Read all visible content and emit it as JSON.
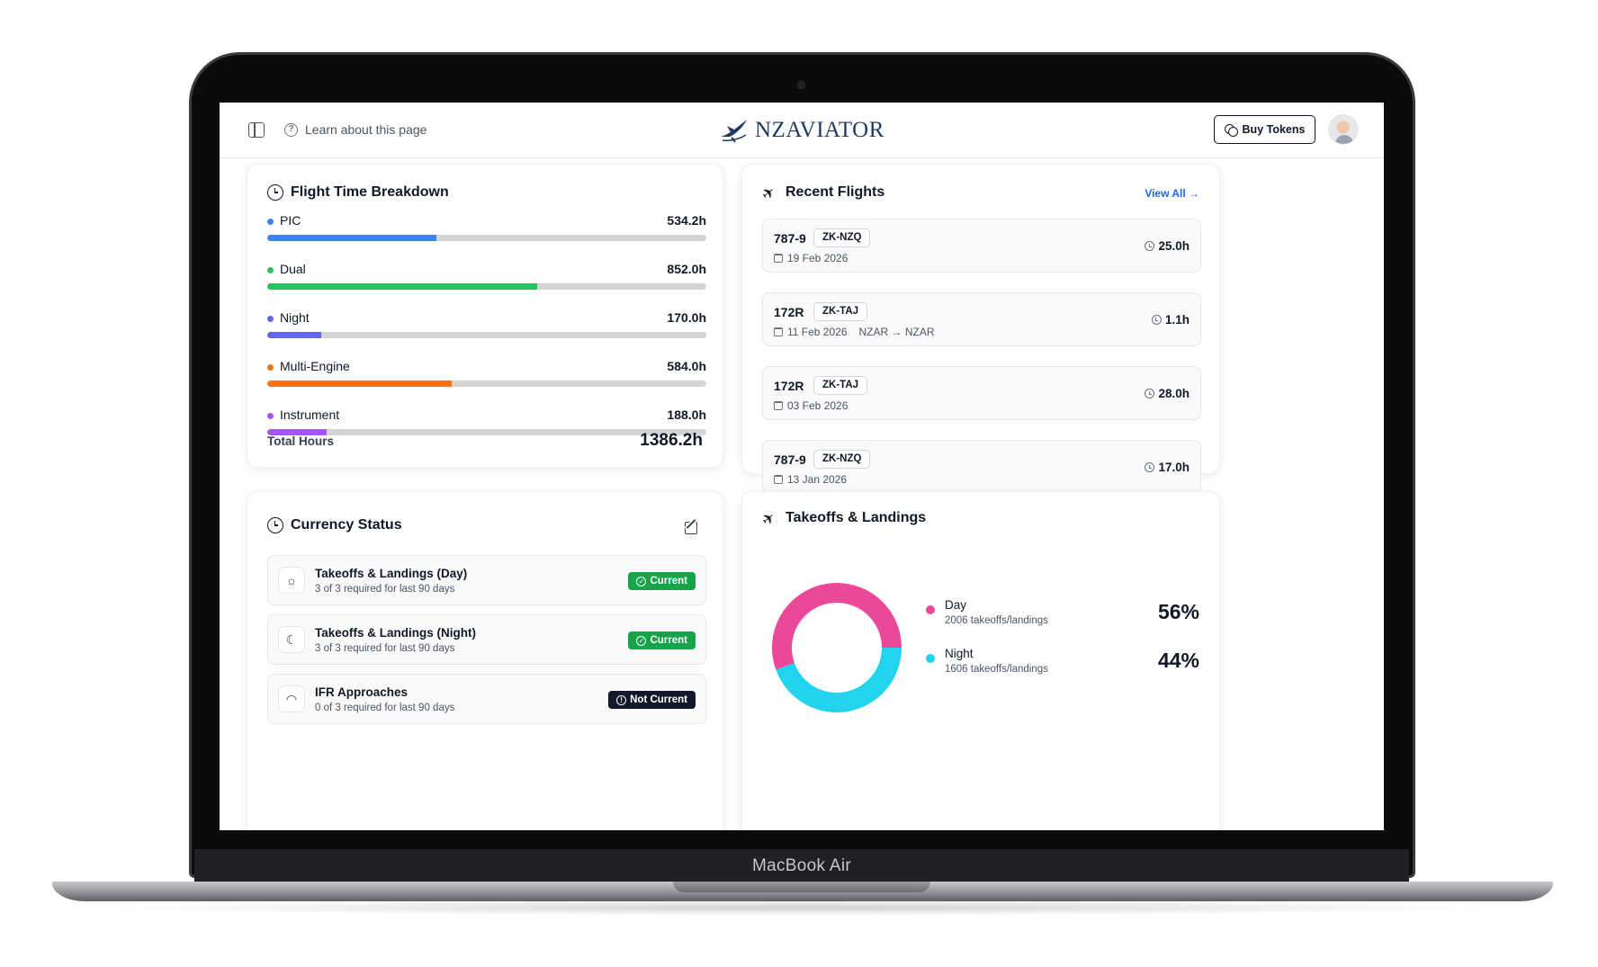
{
  "device": {
    "label": "MacBook Air"
  },
  "header": {
    "help_link": "Learn about this page",
    "logo_text": "NZAVIATOR",
    "buy_tokens": "Buy Tokens"
  },
  "flight_time": {
    "title": "Flight Time Breakdown",
    "rows": [
      {
        "label": "PIC",
        "value": "534.2h",
        "fraction": 0.385,
        "color": "#3b82f6"
      },
      {
        "label": "Dual",
        "value": "852.0h",
        "fraction": 0.615,
        "color": "#22c55e"
      },
      {
        "label": "Night",
        "value": "170.0h",
        "fraction": 0.123,
        "color": "#6366f1"
      },
      {
        "label": "Multi-Engine",
        "value": "584.0h",
        "fraction": 0.421,
        "color": "#f97316"
      },
      {
        "label": "Instrument",
        "value": "188.0h",
        "fraction": 0.136,
        "color": "#a855f7"
      }
    ],
    "total_label": "Total Hours",
    "total_value": "1386.2h"
  },
  "recent_flights": {
    "title": "Recent Flights",
    "view_all": "View All →",
    "items": [
      {
        "type": "787-9",
        "reg": "ZK-NZQ",
        "date": "19 Feb 2026",
        "route": "",
        "duration": "25.0h"
      },
      {
        "type": "172R",
        "reg": "ZK-TAJ",
        "date": "11 Feb 2026",
        "route": "NZAR → NZAR",
        "duration": "1.1h"
      },
      {
        "type": "172R",
        "reg": "ZK-TAJ",
        "date": "03 Feb 2026",
        "route": "",
        "duration": "28.0h"
      },
      {
        "type": "787-9",
        "reg": "ZK-NZQ",
        "date": "13 Jan 2026",
        "route": "",
        "duration": "17.0h"
      }
    ]
  },
  "currency": {
    "title": "Currency Status",
    "items": [
      {
        "title": "Takeoffs & Landings (Day)",
        "sub": "3 of 3 required for last 90 days",
        "status": "Current",
        "icon": "sun-icon"
      },
      {
        "title": "Takeoffs & Landings (Night)",
        "sub": "3 of 3 required for last 90 days",
        "status": "Current",
        "icon": "moon-icon"
      },
      {
        "title": "IFR Approaches",
        "sub": "0 of 3 required for last 90 days",
        "status": "Not Current",
        "icon": "gauge-icon"
      }
    ]
  },
  "takeoffs": {
    "title": "Takeoffs & Landings",
    "chart_data": {
      "type": "pie",
      "series": [
        {
          "name": "Day",
          "value": 2006,
          "percent": "56%",
          "sub": "2006 takeoffs/landings",
          "color": "#ec4899"
        },
        {
          "name": "Night",
          "value": 1606,
          "percent": "44%",
          "sub": "1606 takeoffs/landings",
          "color": "#22d3ee"
        }
      ]
    }
  }
}
